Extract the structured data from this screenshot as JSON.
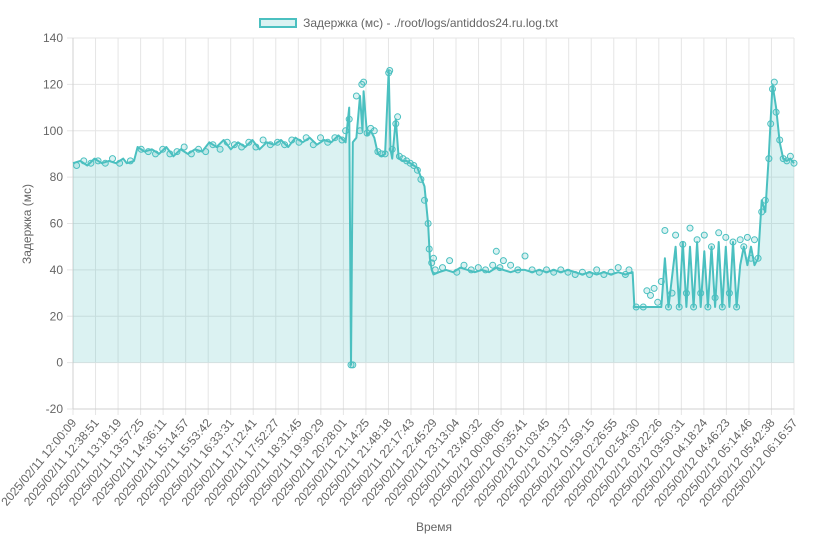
{
  "chart_data": {
    "type": "line",
    "series": [
      {
        "name": "Задержка (мс) - ./root/logs/antiddos24.ru.log.txt",
        "color": "#4bc0c0",
        "fill": "rgba(75,192,192,0.2)",
        "points": [
          [
            0,
            86
          ],
          [
            2,
            87
          ],
          [
            4,
            85
          ],
          [
            6,
            88
          ],
          [
            8,
            86
          ],
          [
            10,
            87
          ],
          [
            12,
            86
          ],
          [
            14,
            88
          ],
          [
            15,
            86
          ],
          [
            17,
            87
          ],
          [
            18,
            93
          ],
          [
            20,
            91
          ],
          [
            22,
            92
          ],
          [
            24,
            90
          ],
          [
            26,
            93
          ],
          [
            28,
            89
          ],
          [
            30,
            92
          ],
          [
            32,
            90
          ],
          [
            34,
            92
          ],
          [
            36,
            91
          ],
          [
            38,
            95
          ],
          [
            40,
            93
          ],
          [
            42,
            96
          ],
          [
            44,
            92
          ],
          [
            46,
            95
          ],
          [
            48,
            93
          ],
          [
            50,
            96
          ],
          [
            52,
            92
          ],
          [
            54,
            95
          ],
          [
            56,
            94
          ],
          [
            58,
            96
          ],
          [
            60,
            93
          ],
          [
            62,
            97
          ],
          [
            64,
            95
          ],
          [
            66,
            97
          ],
          [
            68,
            94
          ],
          [
            70,
            96
          ],
          [
            72,
            95
          ],
          [
            74,
            98
          ],
          [
            76,
            95
          ],
          [
            77,
            110
          ],
          [
            77.5,
            -1
          ],
          [
            78,
            95
          ],
          [
            79,
            97
          ],
          [
            80,
            115
          ],
          [
            80.7,
            100
          ],
          [
            81,
            117
          ],
          [
            82,
            98
          ],
          [
            83,
            100
          ],
          [
            84,
            97
          ],
          [
            85,
            90
          ],
          [
            86,
            89
          ],
          [
            87,
            90
          ],
          [
            88,
            126
          ],
          [
            88.5,
            92
          ],
          [
            89,
            88
          ],
          [
            90,
            105
          ],
          [
            90.8,
            88
          ],
          [
            92,
            87
          ],
          [
            93,
            87
          ],
          [
            94,
            86
          ],
          [
            95,
            85
          ],
          [
            96,
            84
          ],
          [
            97,
            80
          ],
          [
            98,
            76
          ],
          [
            99,
            60
          ],
          [
            99.5,
            45
          ],
          [
            100,
            40
          ],
          [
            100.5,
            38
          ],
          [
            102,
            39
          ],
          [
            104,
            40
          ],
          [
            106,
            39
          ],
          [
            108,
            41
          ],
          [
            110,
            40
          ],
          [
            112,
            39
          ],
          [
            114,
            40
          ],
          [
            116,
            39
          ],
          [
            118,
            41
          ],
          [
            120,
            40
          ],
          [
            122,
            39
          ],
          [
            124,
            40
          ],
          [
            126,
            40
          ],
          [
            128,
            39
          ],
          [
            130,
            40
          ],
          [
            132,
            39
          ],
          [
            134,
            40
          ],
          [
            136,
            39
          ],
          [
            138,
            40
          ],
          [
            140,
            39
          ],
          [
            142,
            38
          ],
          [
            144,
            39
          ],
          [
            146,
            38
          ],
          [
            148,
            39
          ],
          [
            150,
            38
          ],
          [
            152,
            39
          ],
          [
            154,
            38
          ],
          [
            156,
            39
          ],
          [
            156.5,
            24
          ],
          [
            158,
            24
          ],
          [
            160,
            24
          ],
          [
            162,
            24
          ],
          [
            164,
            24
          ],
          [
            165,
            45
          ],
          [
            166,
            24
          ],
          [
            168,
            50
          ],
          [
            169,
            24
          ],
          [
            170,
            52
          ],
          [
            171,
            24
          ],
          [
            172,
            50
          ],
          [
            173,
            24
          ],
          [
            174,
            52
          ],
          [
            175,
            24
          ],
          [
            176,
            48
          ],
          [
            177,
            24
          ],
          [
            178,
            50
          ],
          [
            179,
            24
          ],
          [
            180,
            52
          ],
          [
            181,
            24
          ],
          [
            182,
            50
          ],
          [
            183,
            24
          ],
          [
            184,
            52
          ],
          [
            185,
            24
          ],
          [
            186,
            42
          ],
          [
            187,
            50
          ],
          [
            188,
            42
          ],
          [
            189,
            50
          ],
          [
            190,
            42
          ],
          [
            191,
            45
          ],
          [
            192,
            70
          ],
          [
            193,
            65
          ],
          [
            194,
            90
          ],
          [
            195,
            120
          ],
          [
            196,
            110
          ],
          [
            197,
            95
          ],
          [
            198,
            88
          ],
          [
            199,
            87
          ],
          [
            200,
            88
          ],
          [
            201,
            86
          ]
        ],
        "markers": [
          [
            1,
            85
          ],
          [
            3,
            87
          ],
          [
            5,
            86
          ],
          [
            7,
            87
          ],
          [
            9,
            86
          ],
          [
            11,
            88
          ],
          [
            13,
            86
          ],
          [
            16,
            87
          ],
          [
            19,
            92
          ],
          [
            21,
            91
          ],
          [
            23,
            90
          ],
          [
            25,
            92
          ],
          [
            27,
            90
          ],
          [
            29,
            91
          ],
          [
            31,
            93
          ],
          [
            33,
            90
          ],
          [
            35,
            92
          ],
          [
            37,
            91
          ],
          [
            39,
            94
          ],
          [
            41,
            92
          ],
          [
            43,
            95
          ],
          [
            45,
            94
          ],
          [
            47,
            93
          ],
          [
            49,
            95
          ],
          [
            51,
            93
          ],
          [
            53,
            96
          ],
          [
            55,
            94
          ],
          [
            57,
            95
          ],
          [
            59,
            94
          ],
          [
            61,
            96
          ],
          [
            63,
            95
          ],
          [
            65,
            97
          ],
          [
            67,
            94
          ],
          [
            69,
            97
          ],
          [
            71,
            95
          ],
          [
            73,
            97
          ],
          [
            75,
            96
          ],
          [
            76,
            100
          ],
          [
            77,
            105
          ],
          [
            77.5,
            -1
          ],
          [
            78,
            -1
          ],
          [
            79,
            115
          ],
          [
            80,
            100
          ],
          [
            80.5,
            120
          ],
          [
            81,
            121
          ],
          [
            82,
            99
          ],
          [
            83,
            101
          ],
          [
            84,
            100
          ],
          [
            85,
            91
          ],
          [
            86,
            90
          ],
          [
            87,
            90
          ],
          [
            88,
            125
          ],
          [
            88.3,
            126
          ],
          [
            89,
            92
          ],
          [
            90,
            103
          ],
          [
            90.5,
            106
          ],
          [
            91,
            89
          ],
          [
            92,
            88
          ],
          [
            93,
            87
          ],
          [
            94,
            86
          ],
          [
            95,
            85
          ],
          [
            96,
            83
          ],
          [
            97,
            79
          ],
          [
            98,
            70
          ],
          [
            99,
            60
          ],
          [
            99.3,
            49
          ],
          [
            100,
            43
          ],
          [
            100.5,
            45
          ],
          [
            101,
            40
          ],
          [
            103,
            41
          ],
          [
            105,
            44
          ],
          [
            107,
            39
          ],
          [
            109,
            42
          ],
          [
            111,
            40
          ],
          [
            113,
            41
          ],
          [
            115,
            40
          ],
          [
            117,
            42
          ],
          [
            118,
            48
          ],
          [
            119,
            41
          ],
          [
            120,
            44
          ],
          [
            122,
            42
          ],
          [
            124,
            40
          ],
          [
            126,
            46
          ],
          [
            128,
            40
          ],
          [
            130,
            39
          ],
          [
            132,
            40
          ],
          [
            134,
            39
          ],
          [
            136,
            40
          ],
          [
            138,
            39
          ],
          [
            140,
            38
          ],
          [
            142,
            39
          ],
          [
            144,
            38
          ],
          [
            146,
            40
          ],
          [
            148,
            38
          ],
          [
            150,
            39
          ],
          [
            152,
            41
          ],
          [
            154,
            38
          ],
          [
            155,
            40
          ],
          [
            157,
            24
          ],
          [
            159,
            24
          ],
          [
            160,
            31
          ],
          [
            161,
            29
          ],
          [
            162,
            32
          ],
          [
            163,
            26
          ],
          [
            164,
            35
          ],
          [
            165,
            57
          ],
          [
            166,
            24
          ],
          [
            167,
            30
          ],
          [
            168,
            55
          ],
          [
            169,
            24
          ],
          [
            170,
            51
          ],
          [
            171,
            30
          ],
          [
            172,
            58
          ],
          [
            173,
            24
          ],
          [
            174,
            53
          ],
          [
            175,
            30
          ],
          [
            176,
            55
          ],
          [
            177,
            24
          ],
          [
            178,
            50
          ],
          [
            179,
            28
          ],
          [
            180,
            56
          ],
          [
            181,
            24
          ],
          [
            182,
            54
          ],
          [
            183,
            30
          ],
          [
            184,
            52
          ],
          [
            185,
            24
          ],
          [
            186,
            53
          ],
          [
            187,
            50
          ],
          [
            188,
            54
          ],
          [
            189,
            45
          ],
          [
            190,
            53
          ],
          [
            191,
            45
          ],
          [
            192,
            65
          ],
          [
            193,
            70
          ],
          [
            194,
            88
          ],
          [
            194.5,
            103
          ],
          [
            195,
            118
          ],
          [
            195.5,
            121
          ],
          [
            196,
            108
          ],
          [
            197,
            96
          ],
          [
            198,
            88
          ],
          [
            199,
            87
          ],
          [
            200,
            89
          ],
          [
            201,
            86
          ]
        ]
      }
    ],
    "x_count": 202,
    "xlabel": "Время",
    "ylabel": "Задержка (мс)",
    "ylim": [
      -20,
      140
    ],
    "yticks": [
      -20,
      0,
      20,
      40,
      60,
      80,
      100,
      120,
      140
    ],
    "xtick_labels": [
      "2025/02/11 12:00:09",
      "2025/02/11 12:38:51",
      "2025/02/11 13:18:19",
      "2025/02/11 13:57:25",
      "2025/02/11 14:36:11",
      "2025/02/11 15:14:57",
      "2025/02/11 15:53:42",
      "2025/02/11 16:33:31",
      "2025/02/11 17:12:41",
      "2025/02/11 17:52:27",
      "2025/02/11 18:31:45",
      "2025/02/11 19:30:29",
      "2025/02/11 20:28:01",
      "2025/02/11 21:14:25",
      "2025/02/11 21:48:18",
      "2025/02/11 22:17:43",
      "2025/02/11 22:45:29",
      "2025/02/11 23:13:04",
      "2025/02/11 23:40:32",
      "2025/02/12 00:08:05",
      "2025/02/12 00:35:41",
      "2025/02/12 01:03:45",
      "2025/02/12 01:31:37",
      "2025/02/12 01:59:15",
      "2025/02/12 02:26:55",
      "2025/02/12 02:54:30",
      "2025/02/12 03:22:26",
      "2025/02/12 03:50:31",
      "2025/02/12 04:18:24",
      "2025/02/12 04:46:23",
      "2025/02/12 05:14:46",
      "2025/02/12 05:42:38",
      "2025/02/12 06:16:57"
    ],
    "legend": "top-center",
    "grid": true
  }
}
